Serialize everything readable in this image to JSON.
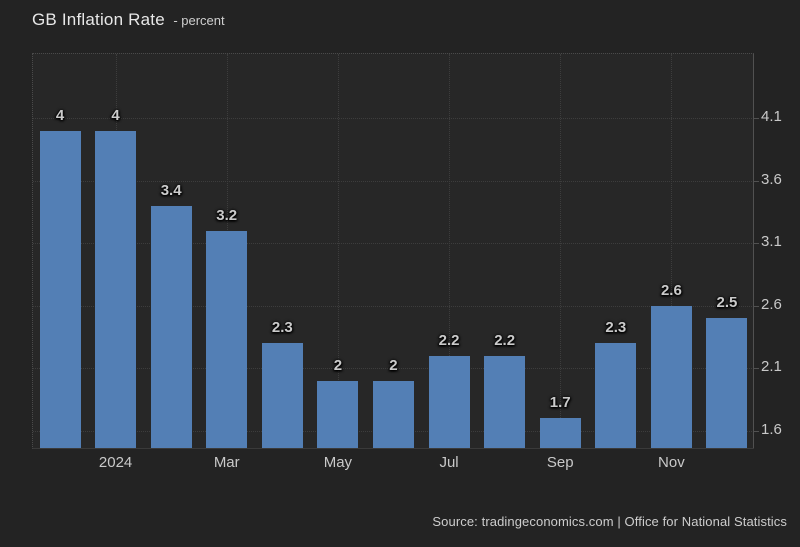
{
  "header": {
    "title": "GB Inflation Rate",
    "subtitle": "- percent"
  },
  "footer": {
    "source": "Source: tradingeconomics.com | Office for National Statistics"
  },
  "colors": {
    "bar": "#537fb5",
    "page_background": "#232323",
    "plot_background": "#272727",
    "grid": "#3d3d3d",
    "axis": "#515151",
    "label_text": "#c9c9c9",
    "title_text": "#e8e8e8"
  },
  "chart_data": {
    "type": "bar",
    "title": "GB Inflation Rate",
    "ylabel": "percent",
    "values": [
      4,
      4,
      3.4,
      3.2,
      2.3,
      2,
      2,
      2.2,
      2.2,
      1.7,
      2.3,
      2.6,
      2.5
    ],
    "bar_labels": [
      "4",
      "4",
      "3.4",
      "3.2",
      "2.3",
      "2",
      "2",
      "2.2",
      "2.2",
      "1.7",
      "2.3",
      "2.6",
      "2.5"
    ],
    "x_ticks": [
      {
        "bar_index": 1,
        "label": "2024"
      },
      {
        "bar_index": 3,
        "label": "Mar"
      },
      {
        "bar_index": 5,
        "label": "May"
      },
      {
        "bar_index": 7,
        "label": "Jul"
      },
      {
        "bar_index": 9,
        "label": "Sep"
      },
      {
        "bar_index": 11,
        "label": "Nov"
      }
    ],
    "y_ticks": [
      "4.1",
      "3.6",
      "3.1",
      "2.6",
      "2.1",
      "1.6"
    ],
    "ylim": [
      1.46,
      4.62
    ],
    "grid": "dotted",
    "legend_position": "none"
  }
}
